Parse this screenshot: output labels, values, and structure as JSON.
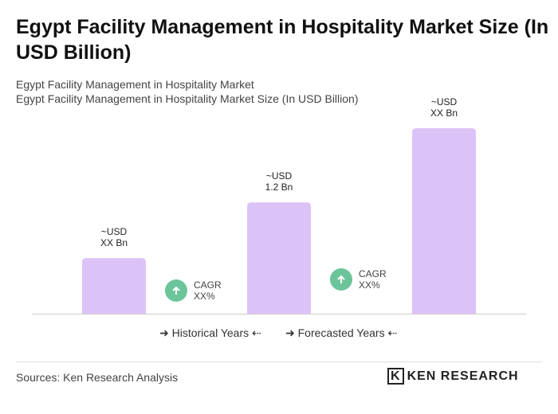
{
  "chart_data": {
    "type": "bar",
    "title": "Egypt Facility Management in Hospitality Market Size (In USD Billion)",
    "subtitle": "Egypt Facility Management in Hospitality Market",
    "subtitle2": "Egypt Facility Management in Hospitality Market Size (In USD Billion)",
    "categories": [
      null,
      null,
      null
    ],
    "values": [
      0.6,
      1.2,
      2.0
    ],
    "value_labels": [
      "~USD XX Bn",
      "~USD 1.2 Bn",
      "~USD XX Bn"
    ],
    "color": "#dcc3f7",
    "cagr": [
      "CAGR XX%",
      "CAGR XX%"
    ],
    "cagr_color": "#6cc49a",
    "legend": [
      "Historical Years",
      "Forecasted Years"
    ],
    "source": "Sources: Ken Research Analysis",
    "logo": "KEN RESEARCH"
  }
}
